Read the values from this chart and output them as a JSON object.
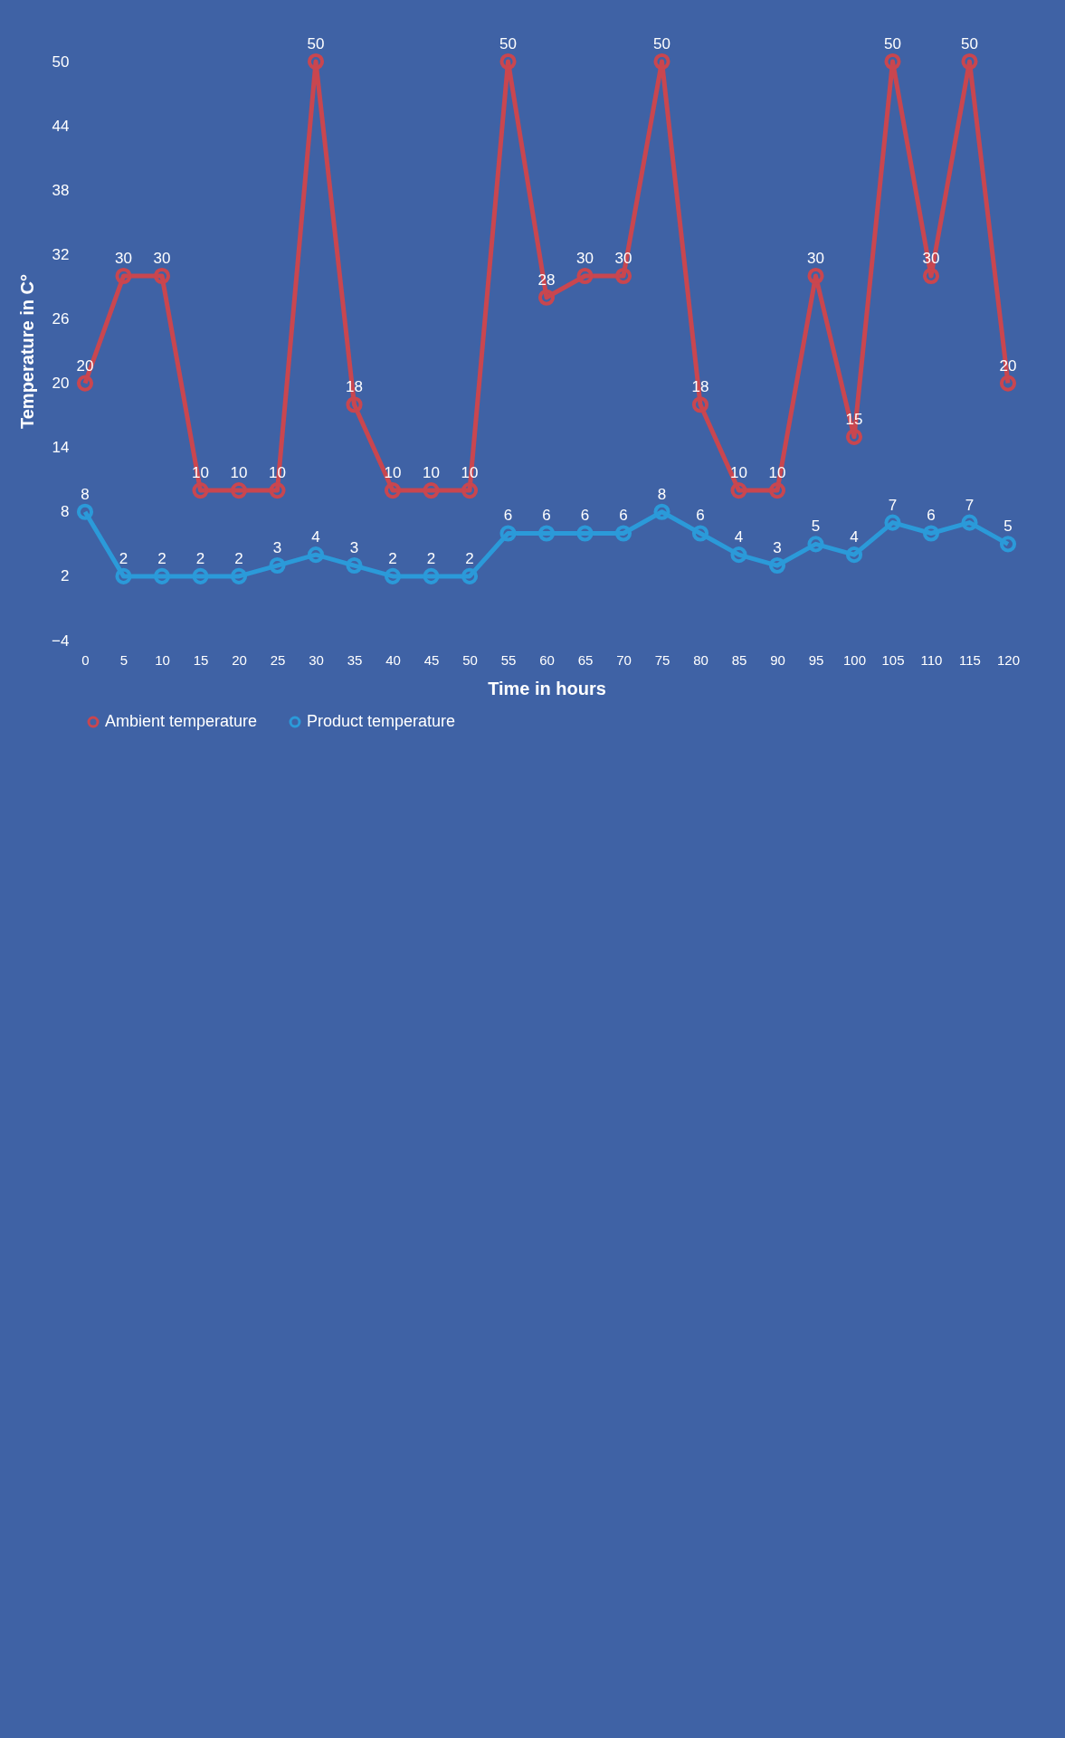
{
  "chart_data": {
    "type": "line",
    "xlabel": "Time in hours",
    "ylabel": "Temperature  in C°",
    "x": [
      0,
      5,
      10,
      15,
      20,
      25,
      30,
      35,
      40,
      45,
      50,
      55,
      60,
      65,
      70,
      75,
      80,
      85,
      90,
      95,
      100,
      105,
      110,
      115,
      120
    ],
    "series": [
      {
        "name": "Ambient temperature",
        "color": "#c9464f",
        "values": [
          20,
          30,
          30,
          10,
          10,
          10,
          50,
          18,
          10,
          10,
          10,
          50,
          28,
          30,
          30,
          50,
          18,
          10,
          10,
          30,
          15,
          50,
          30,
          50,
          20
        ]
      },
      {
        "name": "Product temperature",
        "color": "#2b9ad9",
        "values": [
          8,
          2,
          2,
          2,
          2,
          3,
          4,
          3,
          2,
          2,
          2,
          6,
          6,
          6,
          6,
          8,
          6,
          4,
          3,
          5,
          4,
          7,
          6,
          7,
          5
        ]
      }
    ],
    "xlim": [
      0,
      120
    ],
    "xticks": [
      0,
      5,
      10,
      15,
      20,
      25,
      30,
      35,
      40,
      45,
      50,
      55,
      60,
      65,
      70,
      75,
      80,
      85,
      90,
      95,
      100,
      105,
      110,
      115,
      120
    ],
    "ylim": [
      -4,
      50
    ],
    "yticks": [
      -4,
      2,
      8,
      14,
      20,
      26,
      32,
      38,
      44,
      50
    ],
    "data_labels": true,
    "marker": "circle",
    "line_style": "solid",
    "legend": "bottom"
  }
}
